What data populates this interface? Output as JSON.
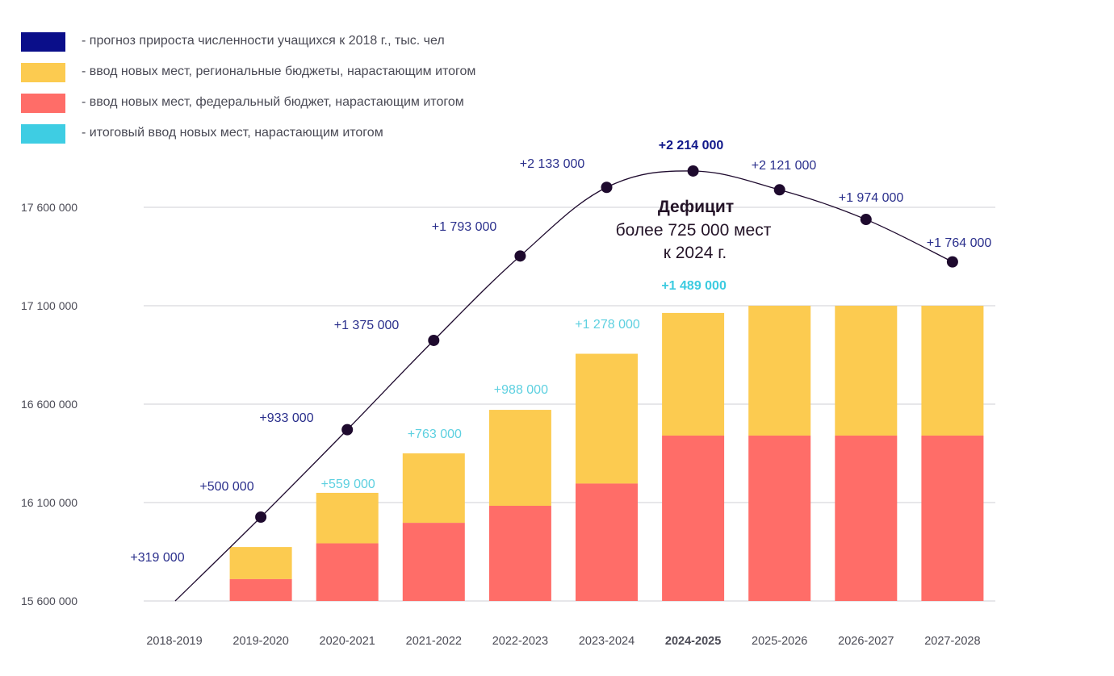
{
  "legend": [
    {
      "color": "#0a0e8a",
      "label": "- прогноз прироста численности учащихся к 2018 г., тыс. чел"
    },
    {
      "color": "#fccb50",
      "label": "- ввод новых мест, региональные бюджеты, нарастающим итогом"
    },
    {
      "color": "#ff6d68",
      "label": "- ввод новых мест, федеральный бюджет, нарастающим итогом"
    },
    {
      "color": "#3ecde3",
      "label": "- итоговый ввод новых мест, нарастающим итогом"
    }
  ],
  "annotation": {
    "title": "Дефицит",
    "line1": "более 725 000 мест",
    "line2": "к 2024 г."
  },
  "chart_data": {
    "type": "bar",
    "title": "",
    "xlabel": "",
    "ylabel": "",
    "yticks": [
      "15 600 000",
      "16 100 000",
      "16 600 000",
      "17 100 000",
      "17 600 000"
    ],
    "ylim": [
      15600000,
      17600000
    ],
    "grid": true,
    "legend_position": "top-left",
    "categories": [
      "2018-2019",
      "2019-2020",
      "2020-2021",
      "2021-2022",
      "2022-2023",
      "2023-2024",
      "2024-2025",
      "2025-2026",
      "2026-2027",
      "2027-2028"
    ],
    "highlight_category": "2024-2025",
    "colors": {
      "federal": "#ff6d68",
      "regional": "#fccb50",
      "line": "#1e0a2e",
      "line_label": "#2a2f8c",
      "total_label": "#5dd0e0"
    },
    "series": [
      {
        "name": "ввод новых мест, федеральный бюджет, нарастающим итогом",
        "type": "bar",
        "stack": "places",
        "values": [
          0,
          113000,
          298000,
          404000,
          492000,
          607000,
          855000,
          855000,
          855000,
          855000
        ]
      },
      {
        "name": "ввод новых мест, региональные бюджеты, нарастающим итогом",
        "type": "bar",
        "stack": "places",
        "values": [
          0,
          166000,
          261000,
          359000,
          496000,
          671000,
          634000,
          671000,
          671000,
          671000
        ]
      },
      {
        "name": "прогноз прироста численности учащихся к 2018 г., тыс. чел",
        "type": "line",
        "values": [
          319000,
          500000,
          933000,
          1375000,
          1793000,
          2133000,
          2214000,
          2121000,
          1974000,
          1764000
        ],
        "labels": [
          "+319 000",
          "+500 000",
          "+933 000",
          "+1 375 000",
          "+1 793 000",
          "+2 133 000",
          "+2 214 000",
          "+2 121 000",
          "+1 974 000",
          "+1 764 000"
        ]
      },
      {
        "name": "итоговый ввод новых мест, нарастающим итогом",
        "type": "label",
        "values": [
          null,
          null,
          559000,
          763000,
          988000,
          1278000,
          1489000,
          null,
          null,
          null
        ],
        "labels": [
          null,
          null,
          "+559 000",
          "+763 000",
          "+988 000",
          "+1 278 000",
          "+1 489 000",
          null,
          null,
          null
        ]
      }
    ]
  }
}
